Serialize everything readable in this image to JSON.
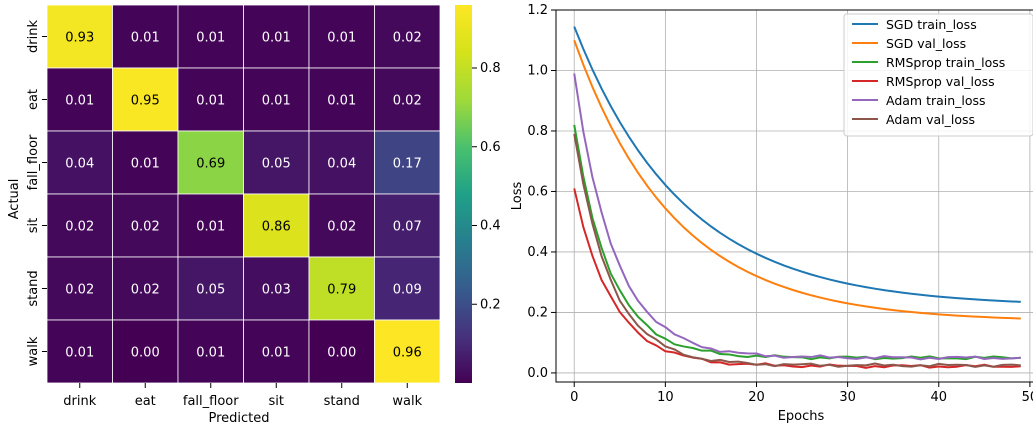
{
  "chart_data": [
    {
      "type": "heatmap",
      "xlabel": "Predicted",
      "ylabel": "Actual",
      "x_categories": [
        "drink",
        "eat",
        "fall_floor",
        "sit",
        "stand",
        "walk"
      ],
      "y_categories": [
        "drink",
        "eat",
        "fall_floor",
        "sit",
        "stand",
        "walk"
      ],
      "matrix": [
        [
          "0.93",
          "0.01",
          "0.01",
          "0.01",
          "0.01",
          "0.02"
        ],
        [
          "0.01",
          "0.95",
          "0.01",
          "0.01",
          "0.01",
          "0.02"
        ],
        [
          "0.04",
          "0.01",
          "0.69",
          "0.05",
          "0.04",
          "0.17"
        ],
        [
          "0.02",
          "0.02",
          "0.01",
          "0.86",
          "0.02",
          "0.07"
        ],
        [
          "0.02",
          "0.02",
          "0.05",
          "0.03",
          "0.79",
          "0.09"
        ],
        [
          "0.01",
          "0.00",
          "0.01",
          "0.01",
          "0.00",
          "0.96"
        ]
      ],
      "colormap": "viridis",
      "colorbar": {
        "range": [
          0,
          0.96
        ],
        "ticks": [
          "0.2",
          "0.4",
          "0.6",
          "0.8"
        ]
      }
    },
    {
      "type": "line",
      "xlabel": "Epochs",
      "ylabel": "Loss",
      "xlim": [
        -2,
        51
      ],
      "ylim": [
        -0.03,
        1.2
      ],
      "xticks": [
        "0",
        "10",
        "20",
        "30",
        "40",
        "50"
      ],
      "yticks": [
        "0.0",
        "0.2",
        "0.4",
        "0.6",
        "0.8",
        "1.0",
        "1.2"
      ],
      "grid": true,
      "legend_position": "top-right",
      "series": [
        {
          "name": "SGD train_loss",
          "color": "#1f77b4",
          "start": 1.145,
          "end": 0.235,
          "tau": 12.0,
          "floor": 0.17,
          "noise": 0.0
        },
        {
          "name": "SGD val_loss",
          "color": "#ff7f0e",
          "start": 1.1,
          "end": 0.18,
          "tau": 11.0,
          "floor": 0.12,
          "noise": 0.0
        },
        {
          "name": "RMSprop train_loss",
          "color": "#2ca02c",
          "start": 0.82,
          "end": 0.05,
          "tau": 4.0,
          "floor": 0.045,
          "noise": 0.006
        },
        {
          "name": "RMSprop val_loss",
          "color": "#d62728",
          "start": 0.61,
          "end": 0.022,
          "tau": 4.2,
          "floor": 0.02,
          "noise": 0.006
        },
        {
          "name": "Adam train_loss",
          "color": "#9467bd",
          "start": 0.99,
          "end": 0.05,
          "tau": 4.4,
          "floor": 0.045,
          "noise": 0.006
        },
        {
          "name": "Adam val_loss",
          "color": "#8c564b",
          "start": 0.79,
          "end": 0.025,
          "tau": 4.0,
          "floor": 0.022,
          "noise": 0.006
        }
      ]
    }
  ]
}
